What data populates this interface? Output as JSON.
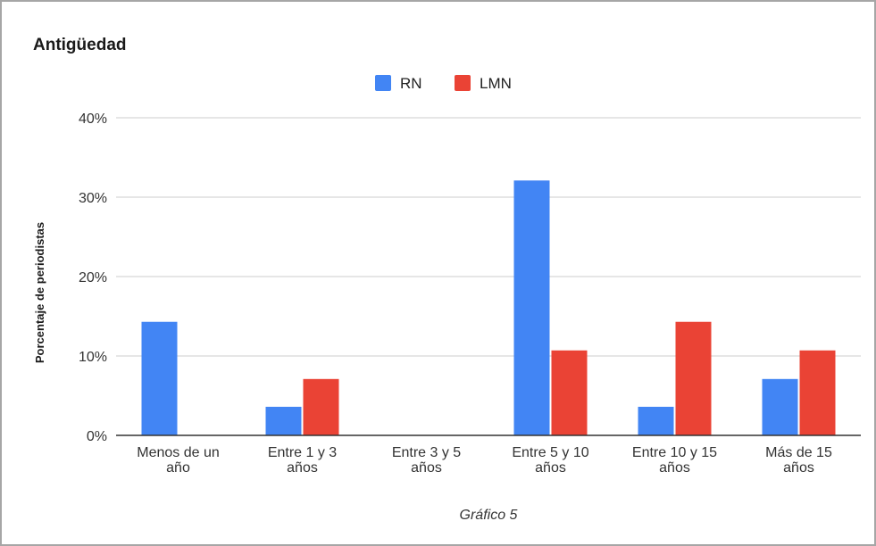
{
  "chart_data": {
    "type": "bar",
    "title": "Antigüedad",
    "ylabel": "Porcentaje de periodistas",
    "xlabel": "",
    "caption": "Gráfico 5",
    "categories": [
      [
        "Menos de un",
        "año"
      ],
      [
        "Entre 1 y 3",
        "años"
      ],
      [
        "Entre 3 y 5",
        "años"
      ],
      [
        "Entre 5 y 10",
        "años"
      ],
      [
        "Entre 10 y 15",
        "años"
      ],
      [
        "Más de 15",
        "años"
      ]
    ],
    "series": [
      {
        "name": "RN",
        "color": "#4285f4",
        "values": [
          14.3,
          3.6,
          0,
          32.1,
          3.6,
          7.1
        ]
      },
      {
        "name": "LMN",
        "color": "#ea4335",
        "values": [
          0,
          7.1,
          0,
          10.7,
          14.3,
          10.7
        ]
      }
    ],
    "ylim": [
      0,
      40
    ],
    "yticks": [
      "0%",
      "10%",
      "20%",
      "30%",
      "40%"
    ],
    "grid": true,
    "legend_position": "top-center"
  }
}
